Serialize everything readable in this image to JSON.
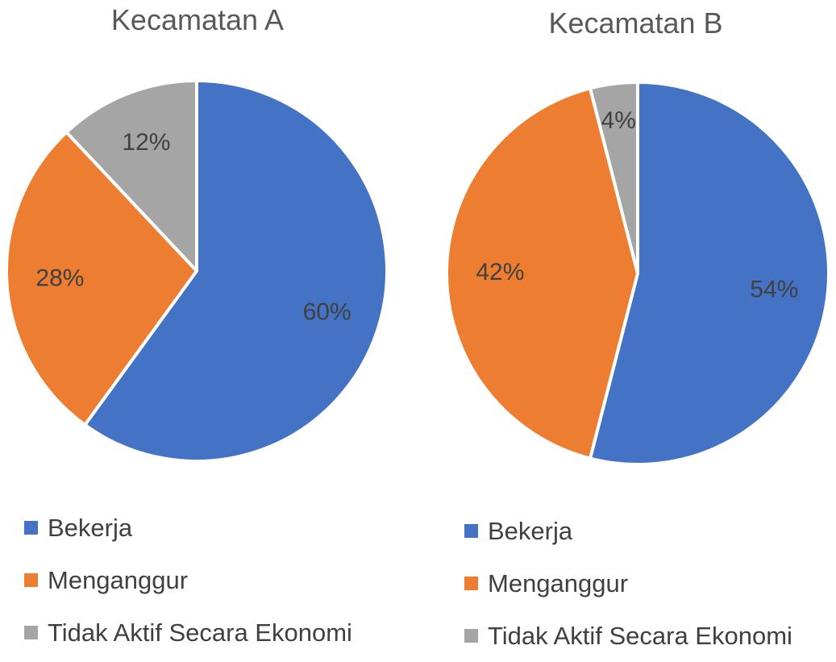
{
  "chart_data": [
    {
      "type": "pie",
      "title": "Kecamatan A",
      "categories": [
        "Bekerja",
        "Menganggur",
        "Tidak Aktif Secara Ekonomi"
      ],
      "values": [
        60,
        28,
        12
      ],
      "data_labels": [
        "60%",
        "28%",
        "12%"
      ],
      "colors": [
        "#4472C4",
        "#ED7D31",
        "#A5A5A5"
      ],
      "legend": "bottom"
    },
    {
      "type": "pie",
      "title": "Kecamatan B",
      "categories": [
        "Bekerja",
        "Menganggur",
        "Tidak Aktif Secara Ekonomi"
      ],
      "values": [
        54,
        42,
        4
      ],
      "data_labels": [
        "54%",
        "42%",
        "4%"
      ],
      "colors": [
        "#4472C4",
        "#ED7D31",
        "#A5A5A5"
      ],
      "legend": "bottom"
    }
  ]
}
